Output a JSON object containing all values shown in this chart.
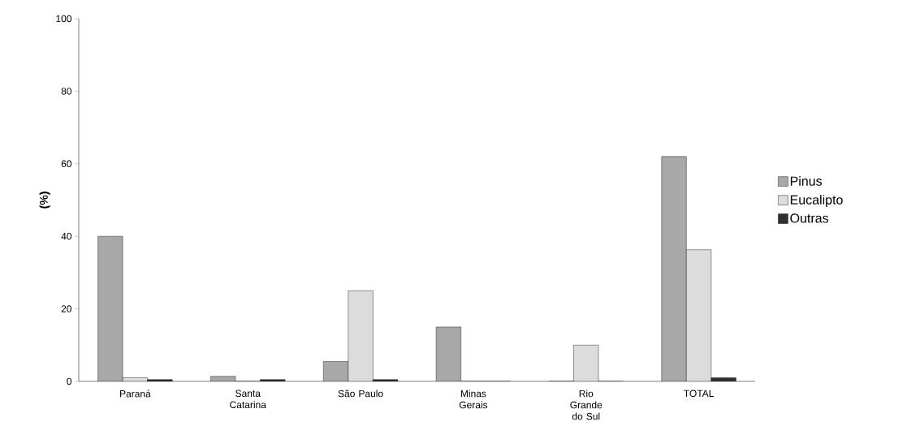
{
  "chart_data": {
    "type": "bar",
    "ylabel": "(%)",
    "categories": [
      "Paraná",
      "Santa Catarina",
      "São Paulo",
      "Minas Gerais",
      "Rio Grande do Sul",
      "TOTAL"
    ],
    "series": [
      {
        "name": "Pinus",
        "color": "#a8a8a8",
        "values": [
          40,
          1.4,
          5.5,
          15,
          0,
          62
        ]
      },
      {
        "name": "Eucalipto",
        "color": "#dcdcdc",
        "values": [
          1,
          0,
          25,
          0,
          10,
          36.3
        ]
      },
      {
        "name": "Outras",
        "color": "#303030",
        "values": [
          0.5,
          0.5,
          0.5,
          0,
          0,
          1
        ]
      }
    ],
    "ylim": [
      0,
      100
    ],
    "yticks": [
      0,
      20,
      40,
      60,
      80,
      100
    ],
    "grid": false,
    "legend": "right"
  }
}
